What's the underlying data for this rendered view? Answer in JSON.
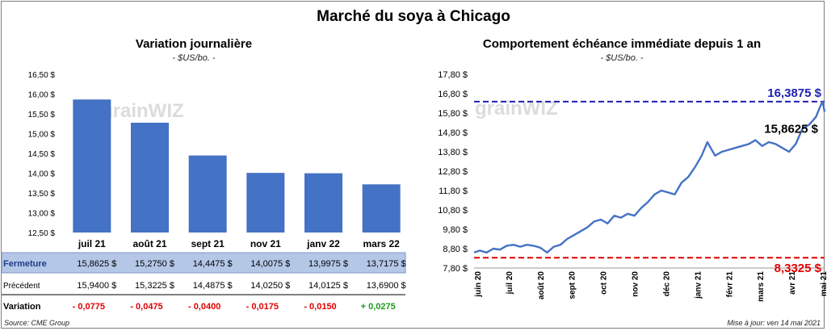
{
  "title": "Marché du soya à Chicago",
  "source": "Source: CME Group",
  "updated": "Mise à jour: ven 14 mai 2021",
  "watermark": "grainWIZ",
  "colors": {
    "bar": "#4472c4",
    "line": "#4472c4",
    "high": "#1f1fb4",
    "low": "#e00000",
    "neg": "#e00000",
    "pos": "#1e9a1e",
    "rowband": "#b4c7e7"
  },
  "chart_data": [
    {
      "type": "bar",
      "title": "Variation journalière",
      "unit": "- $US/bo. -",
      "categories": [
        "juil 21",
        "août 21",
        "sept 21",
        "nov 21",
        "janv 22",
        "mars 22"
      ],
      "values": [
        15.8625,
        15.275,
        14.4475,
        14.0075,
        13.9975,
        13.7175
      ],
      "ylim": [
        12.5,
        16.5
      ],
      "yticks": [
        "12,50 $",
        "13,00 $",
        "13,50 $",
        "14,00 $",
        "14,50 $",
        "15,00 $",
        "15,50 $",
        "16,00 $",
        "16,50 $"
      ],
      "table": {
        "rows": [
          {
            "label": "Fermeture",
            "values": [
              "15,8625  $",
              "15,2750  $",
              "14,4475  $",
              "14,0075  $",
              "13,9975  $",
              "13,7175  $"
            ]
          },
          {
            "label": "Précédent",
            "values": [
              "15,9400  $",
              "15,3225  $",
              "14,4875  $",
              "14,0250  $",
              "14,0125  $",
              "13,6900  $"
            ]
          },
          {
            "label": "Variation",
            "values": [
              "- 0,0775",
              "- 0,0475",
              "- 0,0400",
              "- 0,0175",
              "- 0,0150",
              "+ 0,0275"
            ]
          }
        ]
      }
    },
    {
      "type": "line",
      "title": "Comportement  échéance immédiate depuis 1 an",
      "unit": "- $US/bo. -",
      "ylim": [
        7.8,
        17.8
      ],
      "yticks": [
        "7,80 $",
        "8,80 $",
        "9,80 $",
        "10,80 $",
        "11,80 $",
        "12,80 $",
        "13,80 $",
        "14,80 $",
        "15,80 $",
        "16,80 $",
        "17,80 $"
      ],
      "xticks": [
        "juin 20",
        "juil 20",
        "août 20",
        "sept 20",
        "oct 20",
        "nov 20",
        "déc 20",
        "janv 21",
        "févr 21",
        "mars 21",
        "avr 21",
        "mai 21"
      ],
      "high": {
        "value": 16.3875,
        "label": "16,3875 $"
      },
      "low": {
        "value": 8.3325,
        "label": "8,3325 $"
      },
      "last": {
        "value": 15.8625,
        "label": "15,8625 $"
      },
      "series": [
        {
          "x": [
            "2020-05-14",
            "2020-05-20",
            "2020-05-27",
            "2020-06-03",
            "2020-06-10",
            "2020-06-17",
            "2020-06-24",
            "2020-07-01",
            "2020-07-08",
            "2020-07-15",
            "2020-07-22",
            "2020-07-29",
            "2020-08-05",
            "2020-08-12",
            "2020-08-19",
            "2020-08-26",
            "2020-09-02",
            "2020-09-09",
            "2020-09-16",
            "2020-09-23",
            "2020-09-30",
            "2020-10-07",
            "2020-10-14",
            "2020-10-21",
            "2020-10-28",
            "2020-11-04",
            "2020-11-11",
            "2020-11-18",
            "2020-11-25",
            "2020-12-02",
            "2020-12-09",
            "2020-12-16",
            "2020-12-23",
            "2020-12-30",
            "2021-01-06",
            "2021-01-12",
            "2021-01-20",
            "2021-01-27",
            "2021-02-03",
            "2021-02-10",
            "2021-02-17",
            "2021-02-24",
            "2021-03-03",
            "2021-03-10",
            "2021-03-17",
            "2021-03-24",
            "2021-03-31",
            "2021-04-07",
            "2021-04-14",
            "2021-04-21",
            "2021-04-28",
            "2021-05-05",
            "2021-05-10",
            "2021-05-12",
            "2021-05-14"
          ],
          "values": [
            8.6,
            8.7,
            8.6,
            8.8,
            8.75,
            8.95,
            9.0,
            8.9,
            9.0,
            8.95,
            8.85,
            8.6,
            8.9,
            9.0,
            9.3,
            9.5,
            9.7,
            9.9,
            10.2,
            10.3,
            10.1,
            10.5,
            10.4,
            10.6,
            10.5,
            10.9,
            11.2,
            11.6,
            11.8,
            11.7,
            11.6,
            12.2,
            12.5,
            13.0,
            13.6,
            14.3,
            13.6,
            13.8,
            13.9,
            14.0,
            14.1,
            14.2,
            14.4,
            14.1,
            14.3,
            14.2,
            14.0,
            13.8,
            14.2,
            15.0,
            15.2,
            15.6,
            16.2,
            16.3875,
            15.8625
          ]
        }
      ]
    }
  ]
}
